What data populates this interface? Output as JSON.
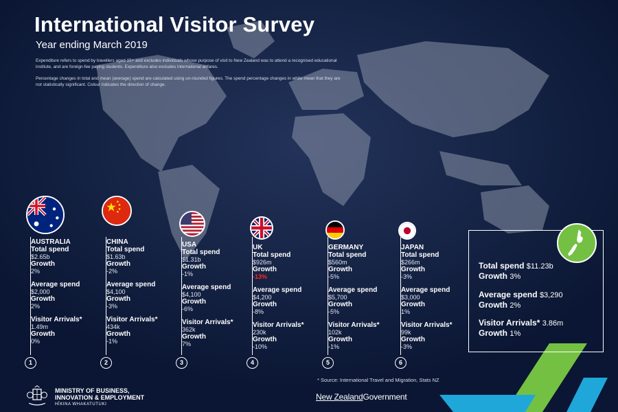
{
  "header": {
    "title": "International Visitor Survey",
    "subtitle": "Year ending March 2019",
    "note1": "Expenditure refers to spend by travellers aged 15+ and excludes individuals whose purpose of visit to New Zealand was to attend a recognised educational institute, and are foreign-fee paying students. Expenditure also excludes international airfares.",
    "note2": "Percentage changes in total and mean (average) spend are calculated using un-rounded figures. The spend percentage changes in white mean that they are not statistically significant. Colour indicates the direction of change."
  },
  "labels": {
    "total_spend": "Total spend",
    "growth": "Growth",
    "average_spend": "Average spend",
    "visitor_arrivals": "Visitor Arrivals*"
  },
  "colors": {
    "background": "#0a1633",
    "negative_significant": "#ff2a1f",
    "nz_green": "#74c043",
    "accent_blue": "#1fa7d9"
  },
  "countries": [
    {
      "number": "1",
      "name": "AUSTRALIA",
      "flag_icon": "australia-flag-icon",
      "total_spend": "$2.65b",
      "total_growth": "2%",
      "average_spend": "$2,000",
      "average_growth": "2%",
      "arrivals": "1.49m",
      "arrivals_growth": "0%"
    },
    {
      "number": "2",
      "name": "CHINA",
      "flag_icon": "china-flag-icon",
      "total_spend": "$1.63b",
      "total_growth": "-2%",
      "average_spend": "$4,100",
      "average_growth": "-3%",
      "arrivals": "434k",
      "arrivals_growth": "-1%"
    },
    {
      "number": "3",
      "name": "USA",
      "flag_icon": "usa-flag-icon",
      "total_spend": "$1.31b",
      "total_growth": "-1%",
      "average_spend": "$4,100",
      "average_growth": "-6%",
      "arrivals": "362k",
      "arrivals_growth": "7%"
    },
    {
      "number": "4",
      "name": "UK",
      "flag_icon": "uk-flag-icon",
      "total_spend": "$926m",
      "total_growth": "-13%",
      "average_spend": "$4,200",
      "average_growth": "-8%",
      "arrivals": "230k",
      "arrivals_growth": "-10%"
    },
    {
      "number": "5",
      "name": "GERMANY",
      "flag_icon": "germany-flag-icon",
      "total_spend": "$560m",
      "total_growth": "-5%",
      "average_spend": "$5,700",
      "average_growth": "-5%",
      "arrivals": "102k",
      "arrivals_growth": "-1%"
    },
    {
      "number": "6",
      "name": "JAPAN",
      "flag_icon": "japan-flag-icon",
      "total_spend": "$266m",
      "total_growth": "-3%",
      "average_spend": "$3,000",
      "average_growth": "1%",
      "arrivals": "99k",
      "arrivals_growth": "-3%"
    }
  ],
  "nz_total": {
    "total_spend": "$11.23b",
    "total_growth": "3%",
    "average_spend": "$3,290",
    "average_growth": "2%",
    "arrivals": "3.86m",
    "arrivals_growth": "1%"
  },
  "footer": {
    "source": "* Source: International Travel and Migration, Stats NZ",
    "ministry_line1": "MINISTRY OF BUSINESS,",
    "ministry_line2": "INNOVATION & EMPLOYMENT",
    "ministry_line3": "HĪKINA WHAKATUTUKI",
    "gov_part1": "New Zealand",
    "gov_part2": "Government"
  }
}
